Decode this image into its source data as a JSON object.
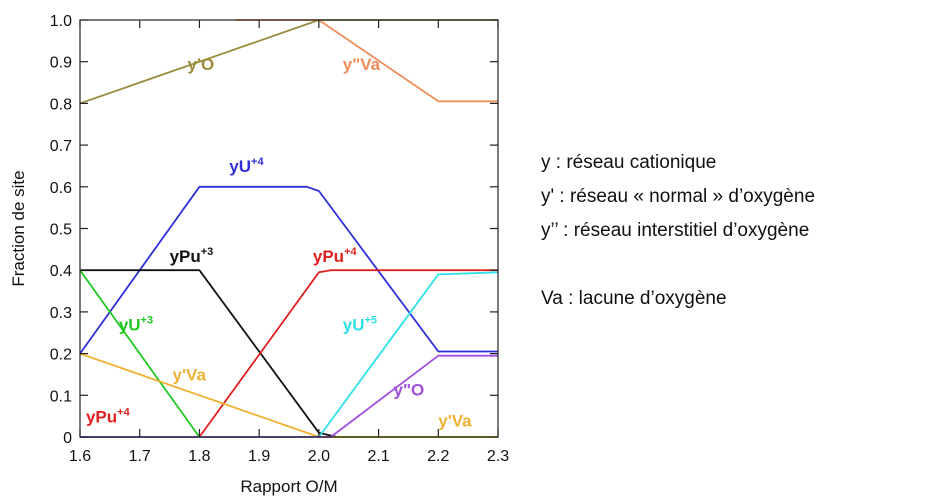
{
  "chart_data": {
    "type": "line",
    "xlabel": "Rapport O/M",
    "ylabel": "Fraction de site",
    "xlim": [
      1.6,
      2.3
    ],
    "ylim": [
      0,
      1.0
    ],
    "xticks": [
      "1.6",
      "1.7",
      "1.8",
      "1.9",
      "2.0",
      "2.1",
      "2.2",
      "2.3"
    ],
    "yticks": [
      "0",
      "0.1",
      "0.2",
      "0.3",
      "0.4",
      "0.5",
      "0.6",
      "0.7",
      "0.8",
      "0.9",
      "1.0"
    ],
    "grid": false,
    "series": [
      {
        "color": "#9a8c3c",
        "points": [
          [
            1.6,
            0.8
          ],
          [
            2.0,
            1.0
          ],
          [
            2.3,
            1.0
          ]
        ]
      },
      {
        "color": "#f08c5a",
        "points": [
          [
            1.6,
            0.0
          ],
          [
            1.995,
            0.0
          ]
        ]
      },
      {
        "color": "#f08c5a",
        "points": [
          [
            1.86,
            1.0
          ],
          [
            2.0,
            1.0
          ],
          [
            2.2,
            0.805
          ],
          [
            2.3,
            0.805
          ]
        ]
      },
      {
        "color": "#2f2fd6",
        "points": [
          [
            1.6,
            0.2
          ],
          [
            1.8,
            0.6
          ],
          [
            1.98,
            0.6
          ],
          [
            2.0,
            0.59
          ],
          [
            2.2,
            0.205
          ],
          [
            2.3,
            0.205
          ]
        ]
      },
      {
        "color": "#111111",
        "points": [
          [
            1.6,
            0.4
          ],
          [
            1.8,
            0.4
          ],
          [
            2.0,
            0.01
          ],
          [
            2.03,
            0.0
          ],
          [
            2.3,
            0.0
          ]
        ]
      },
      {
        "color": "#e02020",
        "points": [
          [
            1.6,
            0.0
          ],
          [
            1.8,
            0.0
          ],
          [
            2.0,
            0.395
          ],
          [
            2.02,
            0.4
          ],
          [
            2.3,
            0.4
          ]
        ]
      },
      {
        "color": "#22c822",
        "points": [
          [
            1.6,
            0.4
          ],
          [
            1.8,
            0.0
          ],
          [
            2.3,
            0.0
          ]
        ]
      },
      {
        "color": "#f0b030",
        "points": [
          [
            1.6,
            0.2
          ],
          [
            2.0,
            0.0
          ],
          [
            2.3,
            0.0
          ]
        ]
      },
      {
        "color": "#2fe0e8",
        "points": [
          [
            1.6,
            0.0
          ],
          [
            2.0,
            0.0
          ],
          [
            2.2,
            0.39
          ],
          [
            2.3,
            0.395
          ]
        ]
      },
      {
        "color": "#a050e0",
        "points": [
          [
            1.6,
            0.0
          ],
          [
            2.02,
            0.0
          ],
          [
            2.2,
            0.195
          ],
          [
            2.3,
            0.195
          ]
        ]
      }
    ],
    "annotations": [
      {
        "text": "y'O",
        "sup": "",
        "color": "#9a8c3c",
        "x": 1.78,
        "y": 0.88
      },
      {
        "text": "y\"Va",
        "sup": "",
        "color": "#f08c5a",
        "x": 2.04,
        "y": 0.88
      },
      {
        "text": "yU",
        "sup": "+4",
        "color": "#2f2fd6",
        "x": 1.85,
        "y": 0.635
      },
      {
        "text": "yPu",
        "sup": "+3",
        "color": "#111111",
        "x": 1.75,
        "y": 0.42
      },
      {
        "text": "yPu",
        "sup": "+4",
        "color": "#e02020",
        "x": 1.99,
        "y": 0.42
      },
      {
        "text": "yU",
        "sup": "+3",
        "color": "#22c822",
        "x": 1.665,
        "y": 0.255
      },
      {
        "text": "yU",
        "sup": "+5",
        "color": "#2fe0e8",
        "x": 2.04,
        "y": 0.255
      },
      {
        "text": "y'Va",
        "sup": "",
        "color": "#f0b030",
        "x": 1.755,
        "y": 0.135
      },
      {
        "text": "y\"O",
        "sup": "",
        "color": "#a050e0",
        "x": 2.125,
        "y": 0.1
      },
      {
        "text": "yPu",
        "sup": "+4",
        "color": "#e02020",
        "x": 1.61,
        "y": 0.035
      },
      {
        "text": "y'Va",
        "sup": "",
        "color": "#f0b030",
        "x": 2.2,
        "y": 0.025
      }
    ]
  },
  "legend": [
    "y : réseau cationique",
    "y' : réseau « normal » d’oxygène",
    "y’’ : réseau interstitiel d’oxygène",
    "",
    "Va : lacune d’oxygène"
  ]
}
